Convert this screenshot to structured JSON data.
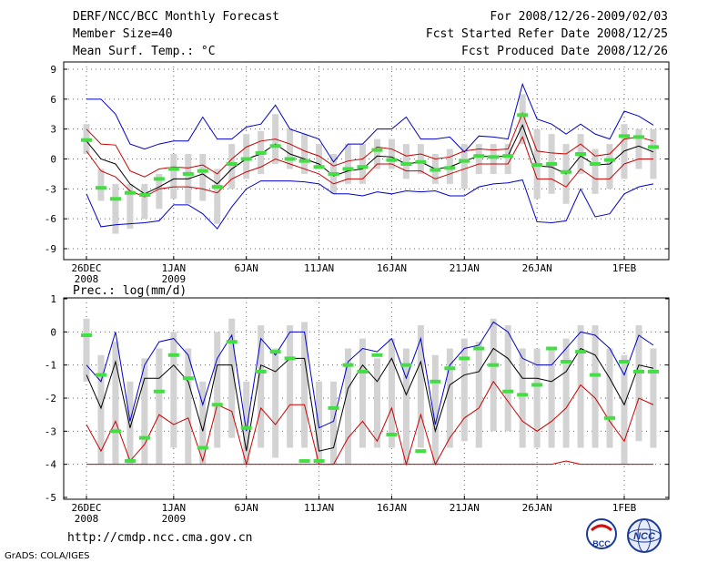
{
  "header": {
    "title": "DERF/NCC/BCC Monthly Forecast",
    "member_size": "Member Size=40",
    "variable": "Mean Surf. Temp.: °C",
    "forecast_period": "For 2008/12/26-2009/02/03",
    "fcst_started": "Fcst Started Refer Date 2008/12/25",
    "fcst_produced": "Fcst Produced Date 2008/12/26"
  },
  "footer": {
    "url": "http://cmdp.ncc.cma.gov.cn",
    "credit": "GrADS: COLA/IGES",
    "logo_bcc": "BCC",
    "logo_ncc": "NCC"
  },
  "colors": {
    "ensemble_mean": "#000000",
    "spread_red": "#cc0000",
    "spread_blue": "#0000cc",
    "box": "#d3d3d3",
    "marker": "#44dd44",
    "grid": "#666666"
  },
  "chart_data": [
    {
      "type": "line",
      "title": "Mean Surf. Temp.: °C",
      "ylabel": "°C",
      "ylim": [
        -10,
        10
      ],
      "yticks": [
        -9,
        -6,
        -3,
        0,
        3,
        6,
        9
      ],
      "xlim": [
        0,
        40
      ],
      "xticks": [
        {
          "day": 0,
          "label": "26DEC",
          "sub": "2008"
        },
        {
          "day": 6,
          "label": "1JAN",
          "sub": "2009"
        },
        {
          "day": 11,
          "label": "6JAN",
          "sub": ""
        },
        {
          "day": 16,
          "label": "11JAN",
          "sub": ""
        },
        {
          "day": 21,
          "label": "16JAN",
          "sub": ""
        },
        {
          "day": 26,
          "label": "21JAN",
          "sub": ""
        },
        {
          "day": 31,
          "label": "26JAN",
          "sub": ""
        },
        {
          "day": 37,
          "label": "1FEB",
          "sub": ""
        }
      ],
      "grid": true,
      "days": [
        0,
        1,
        2,
        3,
        4,
        5,
        6,
        7,
        8,
        9,
        10,
        11,
        12,
        13,
        14,
        15,
        16,
        17,
        18,
        19,
        20,
        21,
        22,
        23,
        24,
        25,
        26,
        27,
        28,
        29,
        30,
        31,
        32,
        33,
        34,
        35,
        36,
        37,
        38,
        39
      ],
      "series": [
        {
          "name": "ensemble mean",
          "color": "#000000",
          "values": [
            1.8,
            0.0,
            -0.5,
            -2.5,
            -3.5,
            -2.8,
            -2.0,
            -2.0,
            -1.5,
            -2.5,
            -1.0,
            0.0,
            0.5,
            1.5,
            0.5,
            0.0,
            -0.5,
            -1.7,
            -1.2,
            -1.0,
            0.3,
            0.2,
            -0.5,
            -0.3,
            -1.0,
            -0.8,
            -0.2,
            0.3,
            0.2,
            0.3,
            3.4,
            -0.7,
            -0.8,
            -1.5,
            0.3,
            -0.6,
            -0.5,
            0.8,
            1.3,
            0.7
          ]
        },
        {
          "name": "upper red",
          "color": "#cc0000",
          "values": [
            3.0,
            1.5,
            1.4,
            -1.2,
            -1.8,
            -1.0,
            -0.8,
            -0.9,
            -0.6,
            -1.5,
            0.0,
            1.2,
            1.8,
            2.0,
            1.5,
            0.8,
            0.3,
            -0.7,
            -0.2,
            0.0,
            1.2,
            1.0,
            0.3,
            0.5,
            0.0,
            0.2,
            0.8,
            1.0,
            0.9,
            1.0,
            4.6,
            0.8,
            0.6,
            0.5,
            1.5,
            0.3,
            0.5,
            2.0,
            2.2,
            1.8
          ]
        },
        {
          "name": "lower red",
          "color": "#cc0000",
          "values": [
            0.8,
            -1.2,
            -1.8,
            -3.2,
            -3.8,
            -3.0,
            -2.8,
            -2.8,
            -3.0,
            -3.4,
            -2.0,
            -1.3,
            -0.8,
            0.0,
            -0.5,
            -1.0,
            -1.5,
            -2.5,
            -2.0,
            -2.0,
            -0.5,
            -0.5,
            -1.2,
            -1.2,
            -2.0,
            -1.5,
            -1.0,
            -0.5,
            -0.5,
            -0.5,
            2.2,
            -2.0,
            -2.0,
            -2.8,
            -1.0,
            -2.0,
            -2.0,
            -0.5,
            0.0,
            0.0
          ]
        },
        {
          "name": "upper blue",
          "color": "#0000cc",
          "values": [
            6.0,
            6.0,
            4.5,
            1.5,
            1.0,
            1.5,
            1.8,
            1.8,
            4.2,
            2.0,
            2.0,
            3.2,
            3.5,
            5.4,
            3.0,
            2.5,
            2.0,
            -0.3,
            1.5,
            1.5,
            3.0,
            3.0,
            4.2,
            2.0,
            2.0,
            2.2,
            0.7,
            2.3,
            2.2,
            2.0,
            7.5,
            4.0,
            3.5,
            2.5,
            3.5,
            2.5,
            2.0,
            4.8,
            4.3,
            3.4
          ]
        },
        {
          "name": "lower blue",
          "color": "#0000cc",
          "values": [
            -3.5,
            -6.8,
            -6.6,
            -6.5,
            -6.4,
            -6.2,
            -4.6,
            -4.6,
            -5.5,
            -7.0,
            -4.8,
            -3.0,
            -2.2,
            -2.2,
            -2.2,
            -2.3,
            -2.5,
            -3.5,
            -3.5,
            -3.7,
            -3.3,
            -3.5,
            -3.2,
            -3.3,
            -3.2,
            -3.7,
            -3.7,
            -2.8,
            -2.5,
            -2.4,
            -2.1,
            -6.3,
            -6.4,
            -6.2,
            -3.0,
            -5.8,
            -5.5,
            -3.5,
            -2.8,
            -2.5
          ]
        }
      ],
      "boxes": [
        [
          0.5,
          3.5
        ],
        [
          -4.2,
          -1.0
        ],
        [
          -7.5,
          -2.5
        ],
        [
          -7.0,
          -2.5
        ],
        [
          -6.0,
          -2.5
        ],
        [
          -5.0,
          -1.5
        ],
        [
          -4.0,
          0.5
        ],
        [
          -4.5,
          0.5
        ],
        [
          -4.2,
          0.5
        ],
        [
          -6.5,
          -1.0
        ],
        [
          -3.0,
          1.5
        ],
        [
          -2.0,
          2.5
        ],
        [
          -1.5,
          2.8
        ],
        [
          -0.5,
          4.5
        ],
        [
          -1.0,
          3.0
        ],
        [
          -1.5,
          2.5
        ],
        [
          -1.0,
          1.5
        ],
        [
          -3.5,
          0.5
        ],
        [
          -2.5,
          1.5
        ],
        [
          -2.5,
          1.5
        ],
        [
          -1.0,
          2.0
        ],
        [
          -1.0,
          2.0
        ],
        [
          -2.0,
          1.5
        ],
        [
          -1.5,
          1.5
        ],
        [
          -2.5,
          0.5
        ],
        [
          -2.5,
          1.0
        ],
        [
          -3.0,
          1.5
        ],
        [
          -1.5,
          1.5
        ],
        [
          -1.5,
          1.5
        ],
        [
          -1.5,
          1.5
        ],
        [
          1.5,
          6.5
        ],
        [
          -4.0,
          3.0
        ],
        [
          -3.5,
          2.5
        ],
        [
          -4.5,
          1.5
        ],
        [
          -1.5,
          2.5
        ],
        [
          -3.5,
          1.0
        ],
        [
          -3.0,
          1.5
        ],
        [
          -2.0,
          3.5
        ],
        [
          -1.0,
          3.0
        ],
        [
          -2.0,
          3.0
        ]
      ],
      "markers": [
        1.9,
        -2.9,
        -4.0,
        -3.4,
        -3.6,
        -2.0,
        -1.0,
        -1.5,
        -1.2,
        -2.8,
        -0.5,
        0.0,
        0.6,
        1.3,
        0.0,
        -0.2,
        -0.8,
        -1.5,
        -1.0,
        -0.8,
        0.9,
        -0.1,
        -0.5,
        -0.3,
        -1.1,
        -0.9,
        -0.2,
        0.3,
        0.2,
        0.3,
        4.4,
        -0.6,
        -0.5,
        -1.3,
        0.5,
        -0.5,
        -0.1,
        2.3,
        2.2,
        1.2
      ]
    },
    {
      "type": "line",
      "title": "Prec.: log(mm/d)",
      "ylabel": "log(mm/d)",
      "ylim": [
        -5,
        1
      ],
      "yticks": [
        -5,
        -4,
        -3,
        -2,
        -1,
        0,
        1
      ],
      "xlim": [
        0,
        40
      ],
      "xticks": [
        {
          "day": 0,
          "label": "26DEC",
          "sub": "2008"
        },
        {
          "day": 6,
          "label": "1JAN",
          "sub": "2009"
        },
        {
          "day": 11,
          "label": "6JAN",
          "sub": ""
        },
        {
          "day": 16,
          "label": "11JAN",
          "sub": ""
        },
        {
          "day": 21,
          "label": "16JAN",
          "sub": ""
        },
        {
          "day": 26,
          "label": "21JAN",
          "sub": ""
        },
        {
          "day": 31,
          "label": "26JAN",
          "sub": ""
        },
        {
          "day": 37,
          "label": "1FEB",
          "sub": ""
        }
      ],
      "grid": true,
      "days": [
        0,
        1,
        2,
        3,
        4,
        5,
        6,
        7,
        8,
        9,
        10,
        11,
        12,
        13,
        14,
        15,
        16,
        17,
        18,
        19,
        20,
        21,
        22,
        23,
        24,
        25,
        26,
        27,
        28,
        29,
        30,
        31,
        32,
        33,
        34,
        35,
        36,
        37,
        38,
        39
      ],
      "series": [
        {
          "name": "ensemble mean",
          "color": "#000000",
          "values": [
            -1.3,
            -2.3,
            -0.9,
            -2.9,
            -1.4,
            -1.4,
            -1.0,
            -1.5,
            -3.0,
            -1.0,
            -1.0,
            -3.6,
            -1.0,
            -1.2,
            -0.8,
            -0.8,
            -3.6,
            -3.5,
            -1.7,
            -1.0,
            -1.5,
            -0.8,
            -1.9,
            -0.9,
            -3.0,
            -1.6,
            -1.3,
            -1.2,
            -0.5,
            -0.8,
            -1.4,
            -1.4,
            -1.5,
            -1.2,
            -0.5,
            -0.7,
            -1.4,
            -2.2,
            -1.0,
            -1.1
          ]
        },
        {
          "name": "upper blue",
          "color": "#0000cc",
          "values": [
            -1.0,
            -1.5,
            0.0,
            -2.7,
            -1.0,
            -0.3,
            -0.2,
            -0.7,
            -2.2,
            -0.8,
            -0.1,
            -3.0,
            -0.2,
            -0.7,
            0.0,
            0.0,
            -2.9,
            -2.7,
            -0.9,
            -0.5,
            -0.6,
            -0.2,
            -1.4,
            -0.2,
            -2.8,
            -1.0,
            -0.5,
            -0.4,
            0.3,
            0.0,
            -0.8,
            -1.0,
            -1.0,
            -0.5,
            0.0,
            -0.1,
            -0.5,
            -1.3,
            -0.1,
            -0.4
          ]
        },
        {
          "name": "upper red",
          "color": "#cc0000",
          "values": [
            -2.8,
            -3.6,
            -2.7,
            -3.9,
            -3.4,
            -2.5,
            -2.8,
            -2.6,
            -3.9,
            -2.2,
            -2.4,
            -4.0,
            -2.3,
            -2.8,
            -2.2,
            -2.2,
            -4.0,
            -4.0,
            -3.2,
            -2.7,
            -3.3,
            -2.3,
            -4.0,
            -2.5,
            -4.0,
            -3.2,
            -2.6,
            -2.3,
            -1.5,
            -2.1,
            -2.7,
            -3.0,
            -2.7,
            -2.3,
            -1.6,
            -2.0,
            -2.7,
            -3.3,
            -2.0,
            -2.2
          ]
        },
        {
          "name": "lower red",
          "color": "#cc0000",
          "values": [
            -4.0,
            -4.0,
            -4.0,
            -4.0,
            -4.0,
            -4.0,
            -4.0,
            -4.0,
            -4.0,
            -4.0,
            -4.0,
            -4.0,
            -4.0,
            -4.0,
            -4.0,
            -4.0,
            -4.0,
            -4.0,
            -4.0,
            -4.0,
            -4.0,
            -4.0,
            -4.0,
            -4.0,
            -4.0,
            -4.0,
            -4.0,
            -4.0,
            -4.0,
            -4.0,
            -4.0,
            -4.0,
            -4.0,
            -3.9,
            -4.0,
            -4.0,
            -4.0,
            -4.0,
            -4.0,
            -4.0
          ]
        }
      ],
      "boxes": [
        [
          -1.5,
          0.4
        ],
        [
          -4.0,
          -0.7
        ],
        [
          -4.0,
          -0.3
        ],
        [
          -4.0,
          -1.5
        ],
        [
          -4.0,
          -0.8
        ],
        [
          -4.0,
          -0.5
        ],
        [
          -3.5,
          0.0
        ],
        [
          -4.0,
          -0.5
        ],
        [
          -4.0,
          -1.5
        ],
        [
          -3.5,
          0.0
        ],
        [
          -3.2,
          0.4
        ],
        [
          -4.0,
          -1.5
        ],
        [
          -3.5,
          0.2
        ],
        [
          -3.8,
          -0.5
        ],
        [
          -3.5,
          0.2
        ],
        [
          -3.5,
          0.3
        ],
        [
          -4.0,
          -1.5
        ],
        [
          -4.0,
          -1.5
        ],
        [
          -4.0,
          -0.5
        ],
        [
          -3.5,
          -0.2
        ],
        [
          -3.5,
          -0.8
        ],
        [
          -3.5,
          -0.2
        ],
        [
          -4.0,
          -0.5
        ],
        [
          -3.5,
          0.2
        ],
        [
          -4.0,
          -0.7
        ],
        [
          -3.5,
          -0.5
        ],
        [
          -3.3,
          -0.2
        ],
        [
          -3.5,
          -0.3
        ],
        [
          -3.0,
          0.4
        ],
        [
          -3.0,
          0.2
        ],
        [
          -3.5,
          -0.5
        ],
        [
          -3.5,
          -0.5
        ],
        [
          -3.5,
          -0.5
        ],
        [
          -3.5,
          -0.2
        ],
        [
          -3.5,
          0.2
        ],
        [
          -3.5,
          0.2
        ],
        [
          -3.5,
          -0.5
        ],
        [
          -4.0,
          -0.7
        ],
        [
          -3.3,
          0.2
        ],
        [
          -3.5,
          -0.5
        ]
      ],
      "markers": [
        -0.1,
        -1.3,
        -3.0,
        -3.9,
        -3.2,
        -1.8,
        -0.7,
        -1.4,
        -3.5,
        -2.2,
        -0.3,
        -2.9,
        -1.2,
        -0.6,
        -0.8,
        -3.9,
        -3.9,
        -2.3,
        -1.0,
        -1.2,
        -0.7,
        -3.1,
        -1.0,
        -3.6,
        -1.5,
        -1.1,
        -0.8,
        -0.5,
        -1.0,
        -1.8,
        -1.9,
        -1.6,
        -0.5,
        -0.9,
        -0.6,
        -1.3,
        -2.6,
        -0.9,
        -1.2,
        -1.2
      ]
    }
  ]
}
